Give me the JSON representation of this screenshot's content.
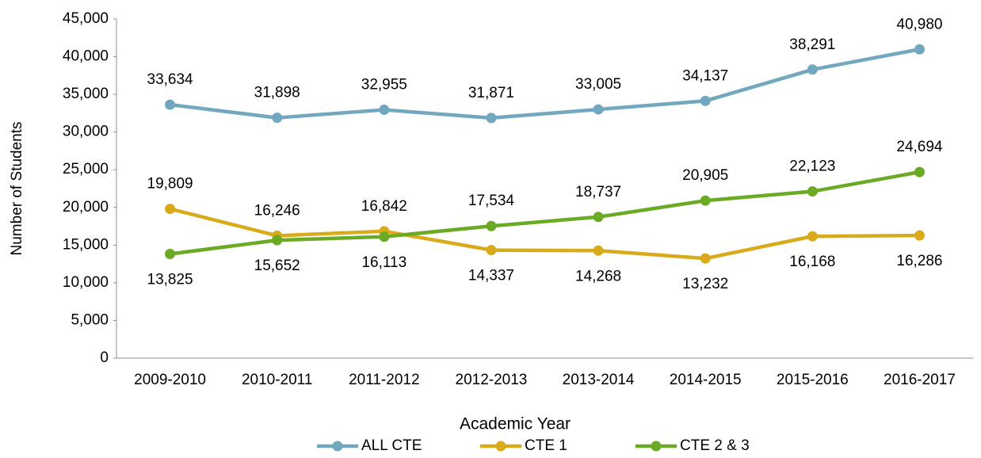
{
  "chart_data": {
    "type": "line",
    "x_label": "Academic Year",
    "y_label": "Number of Students",
    "categories": [
      "2009-2010",
      "2010-2011",
      "2011-2012",
      "2012-2013",
      "2013-2014",
      "2014-2015",
      "2015-2016",
      "2016-2017"
    ],
    "series": [
      {
        "name": "ALL CTE",
        "color": "#71a7bf",
        "values": [
          33634,
          31898,
          32955,
          31871,
          33005,
          34137,
          38291,
          40980
        ],
        "value_labels": [
          "33,634",
          "31,898",
          "32,955",
          "31,871",
          "33,005",
          "34,137",
          "38,291",
          "40,980"
        ]
      },
      {
        "name": "CTE 1",
        "color": "#d9aa1a",
        "values": [
          19809,
          16246,
          16842,
          14337,
          14268,
          13232,
          16168,
          16286
        ],
        "value_labels": [
          "19,809",
          "16,246",
          "16,842",
          "14,337",
          "14,268",
          "13,232",
          "16,168",
          "16,286"
        ]
      },
      {
        "name": "CTE 2 & 3",
        "color": "#6aaa24",
        "values": [
          13825,
          15652,
          16113,
          17534,
          18737,
          20905,
          22123,
          24694
        ],
        "value_labels": [
          "13,825",
          "15,652",
          "16,113",
          "17,534",
          "18,737",
          "20,905",
          "22,123",
          "24,694"
        ]
      }
    ],
    "ylim": [
      0,
      45000
    ],
    "yticks": [
      0,
      {
        "value": 5000,
        "label": "5,000"
      },
      {
        "value": 10000,
        "label": "10,000"
      },
      {
        "value": 15000,
        "label": "15,000"
      },
      {
        "value": 20000,
        "label": "20,000"
      },
      {
        "value": 25000,
        "label": "25,000"
      },
      {
        "value": 30000,
        "label": "30,000"
      },
      {
        "value": 35000,
        "label": "35,000"
      },
      {
        "value": 40000,
        "label": "40,000"
      },
      {
        "value": 45000,
        "label": "45,000"
      }
    ],
    "grid": false,
    "legend": "bottom"
  }
}
